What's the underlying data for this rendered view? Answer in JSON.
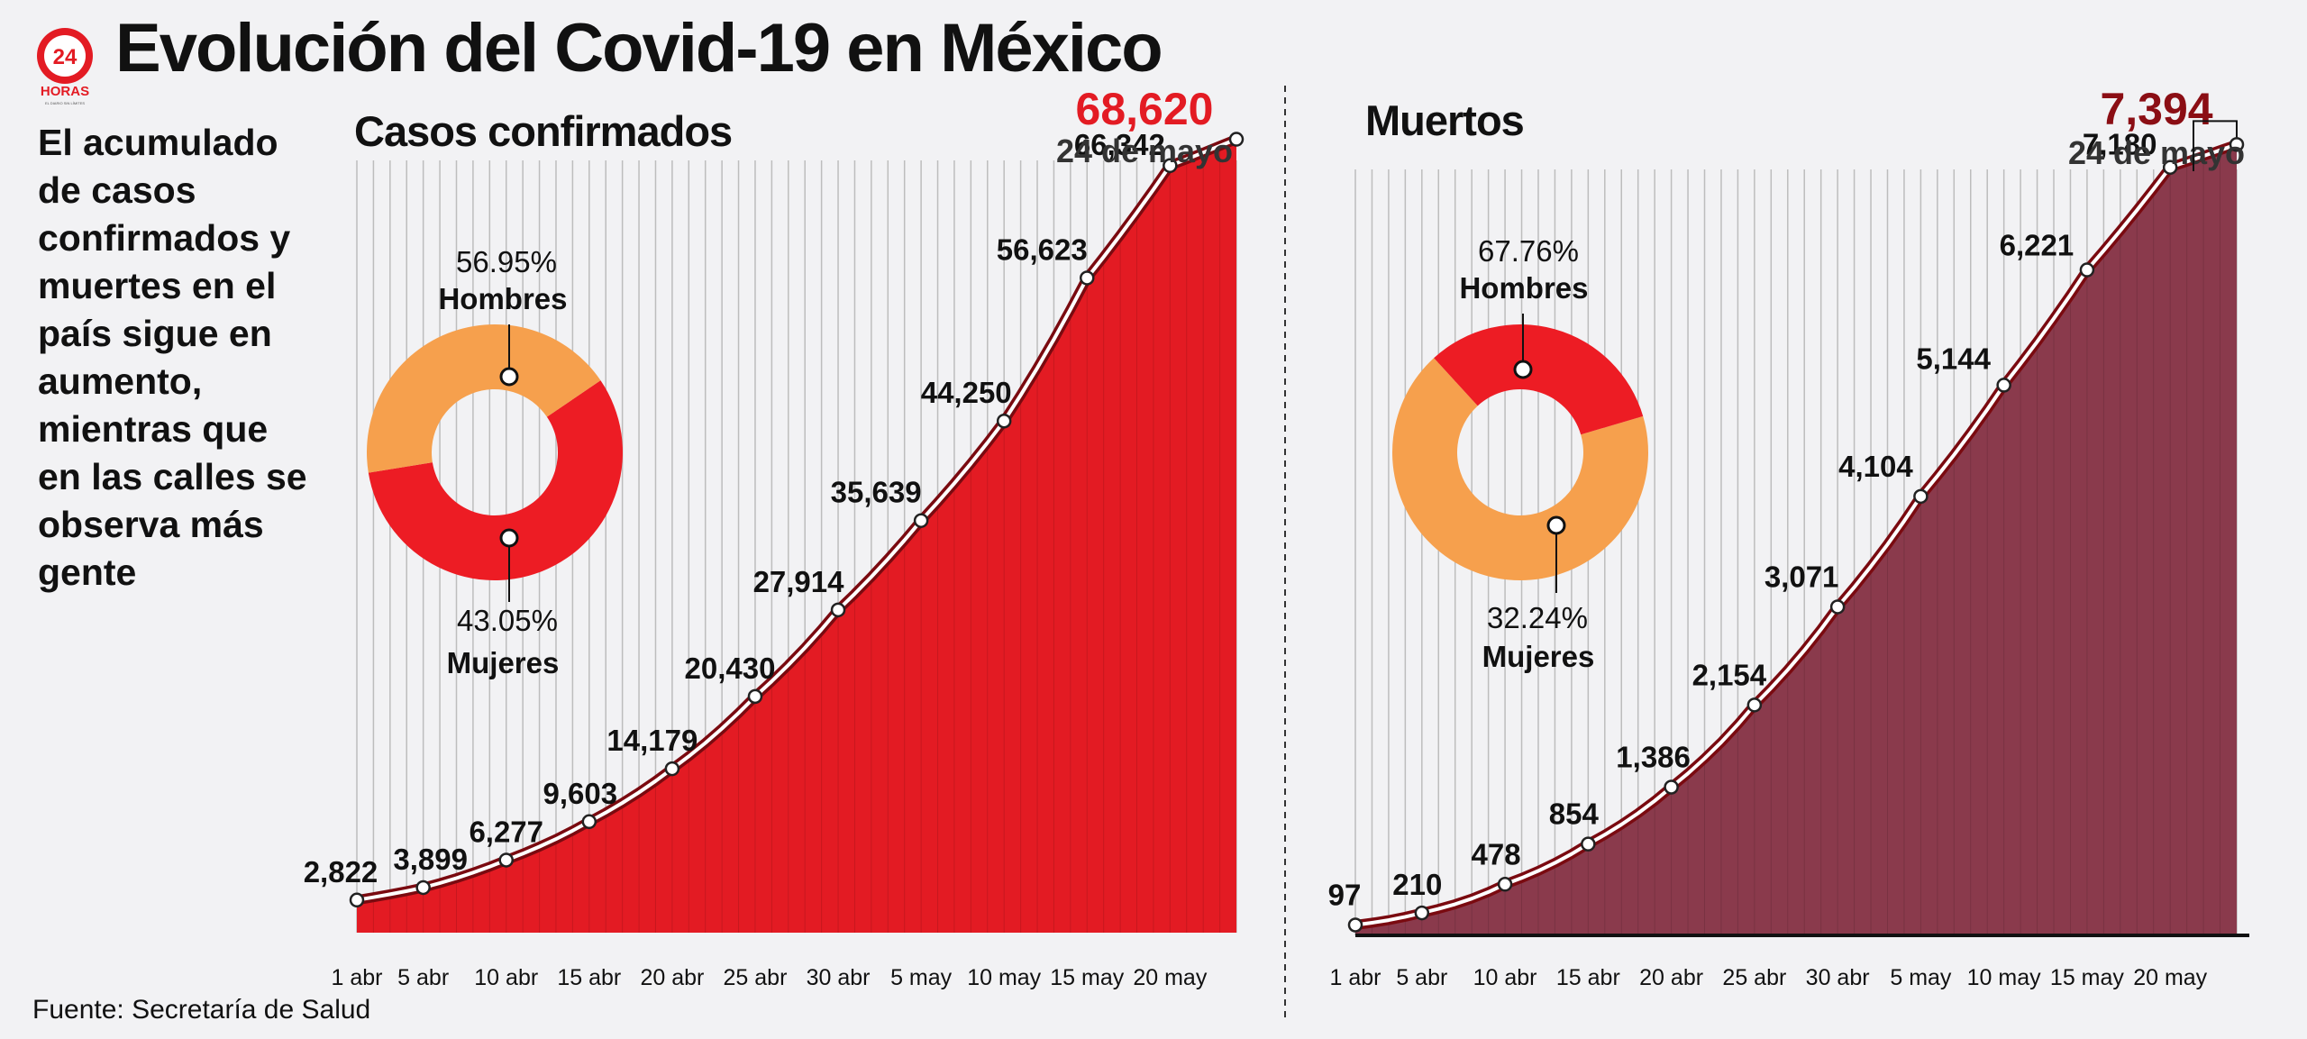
{
  "header": {
    "title": "Evolución del Covid-19 en México"
  },
  "logo": {
    "number": "24",
    "name": "HORAS",
    "tagline": "EL DIARIO SIN LÍMITES"
  },
  "intro_text": "El acumulado de casos confirmados y muertes en el país sigue en aumento, mientras que en las calles se observa más gente",
  "source": "Fuente: Secretaría de Salud",
  "colors": {
    "cases": "#e31b23",
    "deaths": "#8a3a4c",
    "hombres": "#ed1c24",
    "mujeres": "#f6a04d",
    "latest_cases": "#e31b23",
    "latest_deaths": "#8b0e14"
  },
  "chart_data": [
    {
      "type": "area",
      "title": "Casos confirmados",
      "x_tick_labels": [
        "1 abr",
        "5 abr",
        "10 abr",
        "15 abr",
        "20 abr",
        "25 abr",
        "30 abr",
        "5 may",
        "10 may",
        "15 may",
        "20 may"
      ],
      "x_tick_days": [
        1,
        5,
        10,
        15,
        20,
        25,
        30,
        35,
        40,
        45,
        50
      ],
      "labeled_points": [
        {
          "day": 1,
          "value": 2822,
          "label": "2,822"
        },
        {
          "day": 5,
          "value": 3899,
          "label": "3,899"
        },
        {
          "day": 10,
          "value": 6277,
          "label": "6,277"
        },
        {
          "day": 15,
          "value": 9603,
          "label": "9,603"
        },
        {
          "day": 20,
          "value": 14179,
          "label": "14,179"
        },
        {
          "day": 25,
          "value": 20430,
          "label": "20,430"
        },
        {
          "day": 30,
          "value": 27914,
          "label": "27,914"
        },
        {
          "day": 35,
          "value": 35639,
          "label": "35,639"
        },
        {
          "day": 40,
          "value": 44250,
          "label": "44,250"
        },
        {
          "day": 45,
          "value": 56623,
          "label": "56,623"
        },
        {
          "day": 50,
          "value": 66342,
          "label": "66,342"
        },
        {
          "day": 54,
          "value": 68620,
          "label": ""
        }
      ],
      "latest": {
        "value": "68,620",
        "date": "24 de mayo"
      },
      "ylim": [
        0,
        71000
      ],
      "grid": "vertical",
      "donut": {
        "slices": [
          {
            "name": "Hombres",
            "percent": 56.95,
            "label": "56.95%",
            "color": "#ed1c24"
          },
          {
            "name": "Mujeres",
            "percent": 43.05,
            "label": "43.05%",
            "color": "#f6a04d"
          }
        ]
      }
    },
    {
      "type": "area",
      "title": "Muertos",
      "x_tick_labels": [
        "1 abr",
        "5 abr",
        "10 abr",
        "15 abr",
        "20 abr",
        "25 abr",
        "30 abr",
        "5 may",
        "10 may",
        "15 may",
        "20 may"
      ],
      "x_tick_days": [
        1,
        5,
        10,
        15,
        20,
        25,
        30,
        35,
        40,
        45,
        50
      ],
      "labeled_points": [
        {
          "day": 1,
          "value": 97,
          "label": "97"
        },
        {
          "day": 5,
          "value": 210,
          "label": "210"
        },
        {
          "day": 10,
          "value": 478,
          "label": "478"
        },
        {
          "day": 15,
          "value": 854,
          "label": "854"
        },
        {
          "day": 20,
          "value": 1386,
          "label": "1,386"
        },
        {
          "day": 25,
          "value": 2154,
          "label": "2,154"
        },
        {
          "day": 30,
          "value": 3071,
          "label": "3,071"
        },
        {
          "day": 35,
          "value": 4104,
          "label": "4,104"
        },
        {
          "day": 40,
          "value": 5144,
          "label": "5,144"
        },
        {
          "day": 45,
          "value": 6221,
          "label": "6,221"
        },
        {
          "day": 50,
          "value": 7180,
          "label": "7,180"
        },
        {
          "day": 54,
          "value": 7394,
          "label": ""
        }
      ],
      "latest": {
        "value": "7,394",
        "date": "24 de mayo"
      },
      "ylim": [
        0,
        7700
      ],
      "grid": "vertical",
      "donut": {
        "slices": [
          {
            "name": "Hombres",
            "percent": 67.76,
            "label": "67.76%",
            "color": "#f6a04d"
          },
          {
            "name": "Mujeres",
            "percent": 32.24,
            "label": "32.24%",
            "color": "#ed1c24"
          }
        ]
      }
    }
  ]
}
